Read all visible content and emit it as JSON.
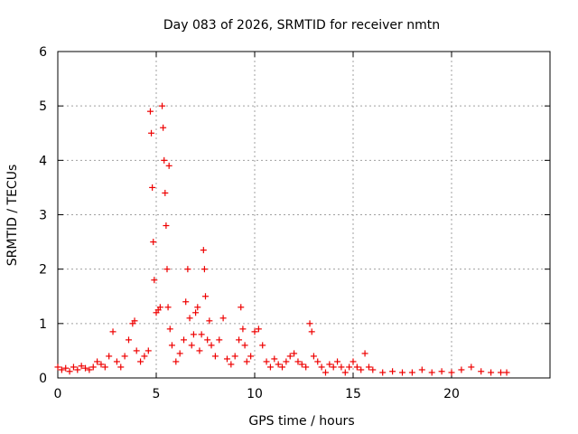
{
  "chart_data": {
    "type": "scatter",
    "title": "Day 083 of 2026, SRMTID for receiver nmtn",
    "xlabel": "GPS time / hours",
    "ylabel": "SRMTID / TECUs",
    "xlim": [
      0,
      25
    ],
    "ylim": [
      0,
      6
    ],
    "xticks": [
      0,
      5,
      10,
      15,
      20
    ],
    "yticks": [
      0,
      1,
      2,
      3,
      4,
      5,
      6
    ],
    "grid": true,
    "marker": "plus",
    "colors": {
      "series": "#ee0000",
      "grid": "#a0a0a0",
      "axis": "#000000"
    },
    "series": [
      {
        "name": "SRMTID",
        "x": [
          0.0,
          0.2,
          0.4,
          0.6,
          0.8,
          1.0,
          1.2,
          1.4,
          1.6,
          1.8,
          2.0,
          2.2,
          2.4,
          2.6,
          2.8,
          3.0,
          3.2,
          3.4,
          3.6,
          3.8,
          3.9,
          4.0,
          4.2,
          4.4,
          4.6,
          4.7,
          4.75,
          4.8,
          4.85,
          4.9,
          5.0,
          5.1,
          5.2,
          5.3,
          5.35,
          5.4,
          5.45,
          5.5,
          5.55,
          5.6,
          5.65,
          5.7,
          5.8,
          6.0,
          6.2,
          6.4,
          6.5,
          6.6,
          6.7,
          6.8,
          6.9,
          7.0,
          7.1,
          7.2,
          7.3,
          7.4,
          7.45,
          7.5,
          7.6,
          7.7,
          7.8,
          8.0,
          8.2,
          8.4,
          8.6,
          8.8,
          9.0,
          9.2,
          9.3,
          9.4,
          9.5,
          9.6,
          9.8,
          10.0,
          10.2,
          10.4,
          10.6,
          10.8,
          11.0,
          11.2,
          11.4,
          11.6,
          11.8,
          12.0,
          12.2,
          12.4,
          12.6,
          12.8,
          12.9,
          13.0,
          13.2,
          13.4,
          13.6,
          13.8,
          14.0,
          14.2,
          14.4,
          14.6,
          14.8,
          15.0,
          15.2,
          15.4,
          15.6,
          15.8,
          16.0,
          16.5,
          17.0,
          17.5,
          18.0,
          18.5,
          19.0,
          19.5,
          20.0,
          20.5,
          21.0,
          21.5,
          22.0,
          22.5,
          22.8
        ],
        "y": [
          0.2,
          0.15,
          0.18,
          0.12,
          0.2,
          0.15,
          0.22,
          0.18,
          0.15,
          0.2,
          0.3,
          0.25,
          0.2,
          0.4,
          0.85,
          0.3,
          0.2,
          0.4,
          0.7,
          1.0,
          1.05,
          0.5,
          0.3,
          0.4,
          0.5,
          4.9,
          4.5,
          3.5,
          2.5,
          1.8,
          1.2,
          1.25,
          1.3,
          5.0,
          4.6,
          4.0,
          3.4,
          2.8,
          2.0,
          1.3,
          3.9,
          0.9,
          0.6,
          0.3,
          0.45,
          0.7,
          1.4,
          2.0,
          1.1,
          0.6,
          0.8,
          1.2,
          1.3,
          0.5,
          0.8,
          2.35,
          2.0,
          1.5,
          0.7,
          1.05,
          0.6,
          0.4,
          0.7,
          1.1,
          0.35,
          0.25,
          0.4,
          0.7,
          1.3,
          0.9,
          0.6,
          0.3,
          0.4,
          0.85,
          0.9,
          0.6,
          0.3,
          0.2,
          0.35,
          0.25,
          0.2,
          0.3,
          0.4,
          0.45,
          0.3,
          0.25,
          0.2,
          1.0,
          0.85,
          0.4,
          0.3,
          0.2,
          0.1,
          0.25,
          0.2,
          0.3,
          0.2,
          0.1,
          0.2,
          0.3,
          0.2,
          0.15,
          0.45,
          0.2,
          0.15,
          0.1,
          0.12,
          0.1,
          0.1,
          0.15,
          0.1,
          0.12,
          0.1,
          0.15,
          0.2,
          0.12,
          0.1,
          0.1,
          0.1
        ]
      }
    ]
  }
}
